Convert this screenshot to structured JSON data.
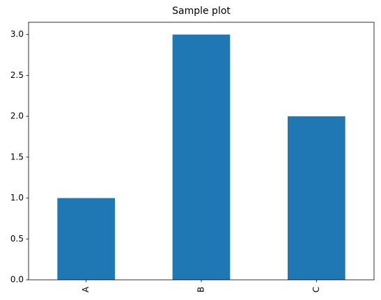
{
  "chart_data": {
    "type": "bar",
    "title": "Sample plot",
    "categories": [
      "A",
      "B",
      "C"
    ],
    "values": [
      1,
      3,
      2
    ],
    "color": "#1f77b4",
    "ylim": [
      0,
      3.15
    ],
    "yticks": [
      {
        "value": 0,
        "label": "0.0"
      },
      {
        "value": 0.5,
        "label": "0.5"
      },
      {
        "value": 1,
        "label": "1.0"
      },
      {
        "value": 1.5,
        "label": "1.5"
      },
      {
        "value": 2,
        "label": "2.0"
      },
      {
        "value": 2.5,
        "label": "2.5"
      },
      {
        "value": 3,
        "label": "3.0"
      }
    ],
    "grid": false
  }
}
